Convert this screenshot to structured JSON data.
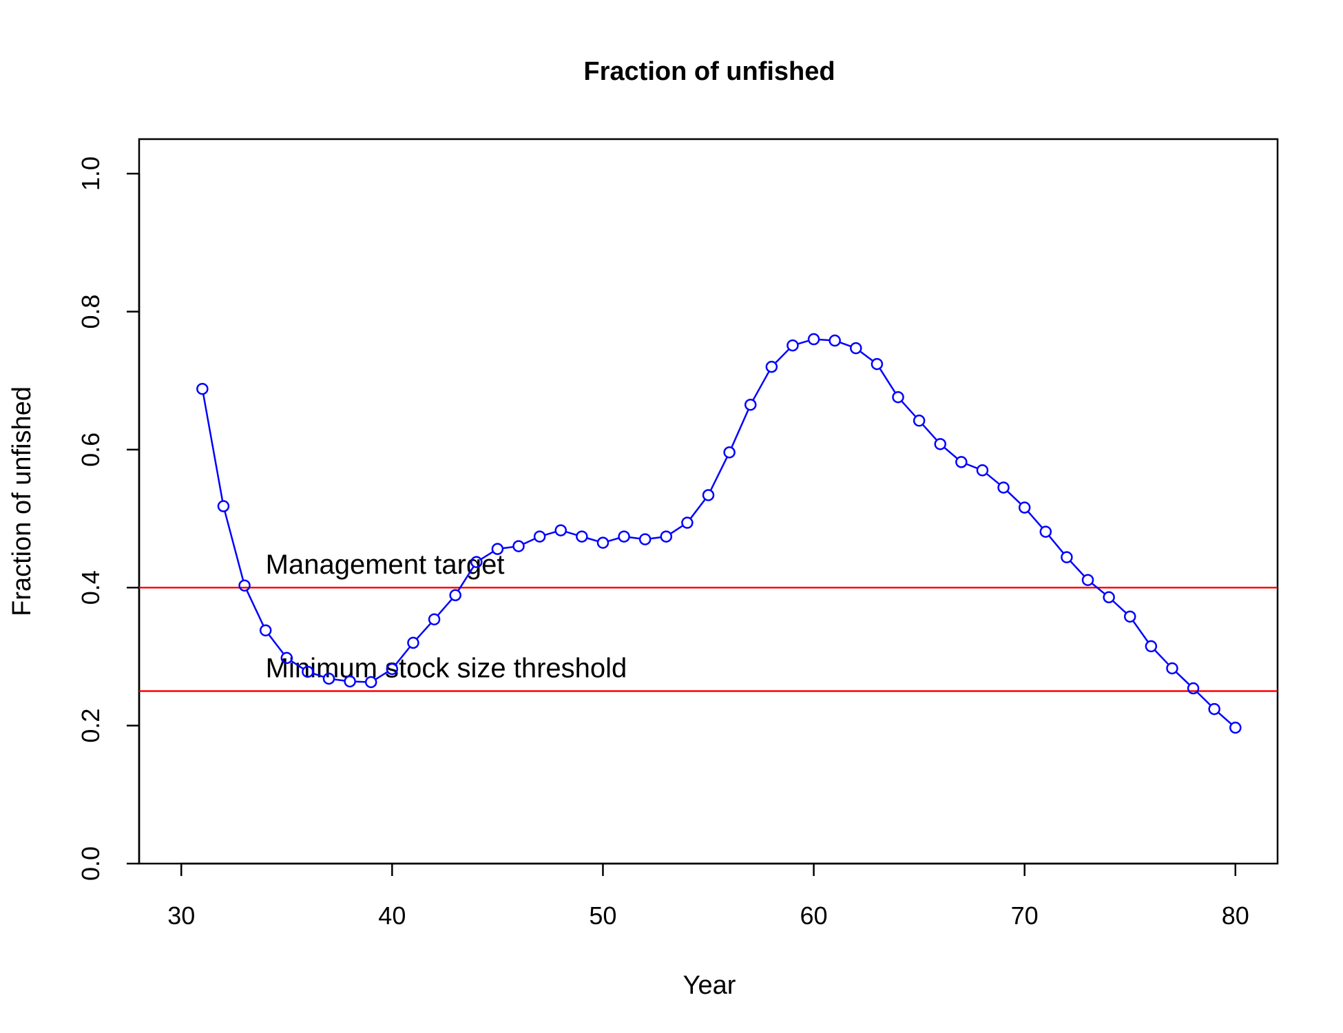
{
  "chart_data": {
    "type": "line",
    "title": "Fraction of unfished",
    "xlabel": "Year",
    "ylabel": "Fraction of unfished",
    "xlim": [
      28,
      82
    ],
    "ylim": [
      0,
      1.05
    ],
    "x_ticks": [
      "30",
      "40",
      "50",
      "60",
      "70",
      "80"
    ],
    "y_ticks": [
      "0.0",
      "0.2",
      "0.4",
      "0.6",
      "0.8",
      "1.0"
    ],
    "grid": false,
    "series": [
      {
        "color": "#0000FF",
        "marker": "open-circle",
        "x": [
          31,
          32,
          33,
          34,
          35,
          36,
          37,
          38,
          39,
          40,
          41,
          42,
          43,
          44,
          45,
          46,
          47,
          48,
          49,
          50,
          51,
          52,
          53,
          54,
          55,
          56,
          57,
          58,
          59,
          60,
          61,
          62,
          63,
          64,
          65,
          66,
          67,
          68,
          69,
          70,
          71,
          72,
          73,
          74,
          75,
          76,
          77,
          78,
          79,
          80
        ],
        "y": [
          0.688,
          0.518,
          0.403,
          0.338,
          0.298,
          0.278,
          0.268,
          0.264,
          0.263,
          0.282,
          0.32,
          0.354,
          0.389,
          0.437,
          0.456,
          0.46,
          0.474,
          0.483,
          0.474,
          0.465,
          0.474,
          0.47,
          0.474,
          0.494,
          0.534,
          0.596,
          0.665,
          0.72,
          0.751,
          0.76,
          0.758,
          0.747,
          0.724,
          0.676,
          0.642,
          0.608,
          0.582,
          0.57,
          0.545,
          0.516,
          0.481,
          0.444,
          0.411,
          0.386,
          0.358,
          0.315,
          0.283,
          0.254,
          0.224,
          0.197
        ]
      }
    ],
    "reference_lines": [
      {
        "y": 0.4,
        "color": "#FF0000",
        "label": "Management target",
        "label_x": 34
      },
      {
        "y": 0.25,
        "color": "#FF0000",
        "label": "Minimum stock size threshold",
        "label_x": 34
      }
    ]
  }
}
